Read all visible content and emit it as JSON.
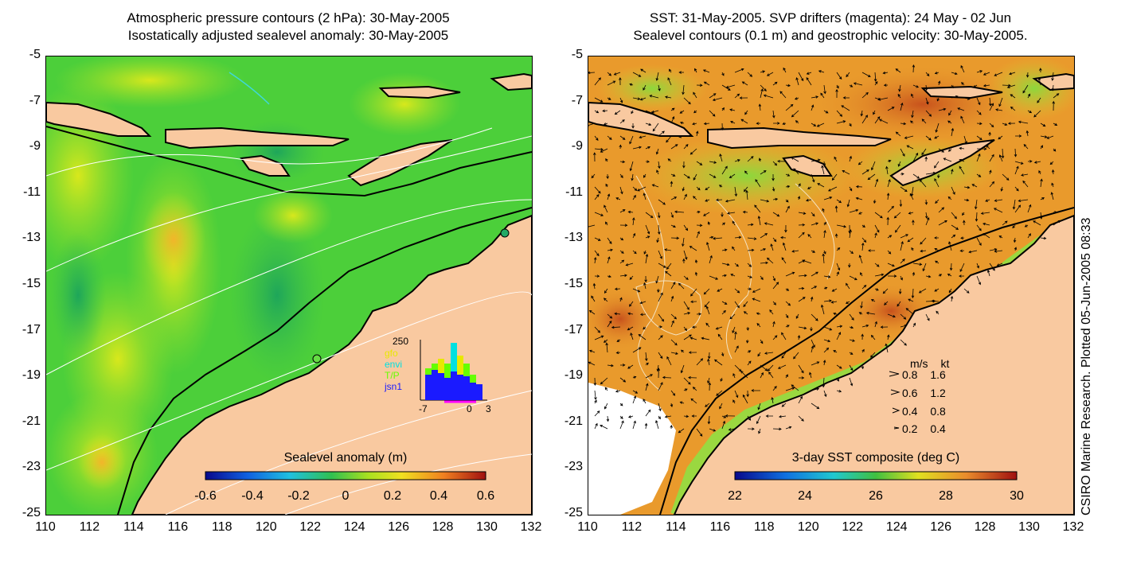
{
  "left_panel": {
    "title_line1": "Atmospheric pressure contours (2 hPa): 30-May-2005",
    "title_line2": "Isostatically adjusted sealevel anomaly: 30-May-2005",
    "colorbar": {
      "title": "Sealevel anomaly (m)",
      "ticks": [
        "-0.6",
        "-0.4",
        "-0.2",
        "0",
        "0.2",
        "0.4",
        "0.6"
      ],
      "range": [
        -0.6,
        0.6
      ]
    },
    "inset": {
      "ymax_label": "250",
      "satellites": [
        {
          "name": "gfo",
          "color": "#e8e800"
        },
        {
          "name": "envi",
          "color": "#00e0e0"
        },
        {
          "name": "T/P",
          "color": "#66ff00"
        },
        {
          "name": "jsn1",
          "color": "#1a1aff"
        }
      ],
      "x_ticks": [
        "-7",
        "0",
        "3"
      ]
    }
  },
  "right_panel": {
    "title_line1": "SST: 31-May-2005. SVP drifters (magenta): 24 May - 02 Jun",
    "title_line2": "Sealevel contours (0.1 m) and geostrophic velocity: 30-May-2005.",
    "colorbar": {
      "title": "3-day SST composite (deg C)",
      "ticks": [
        "22",
        "24",
        "26",
        "28",
        "30"
      ],
      "range": [
        22,
        30
      ]
    },
    "velocity_legend": {
      "header_ms": "m/s",
      "header_kt": "kt",
      "rows": [
        {
          "ms": "0.8",
          "kt": "1.6"
        },
        {
          "ms": "0.6",
          "kt": "1.2"
        },
        {
          "ms": "0.4",
          "kt": "0.8"
        },
        {
          "ms": "0.2",
          "kt": "0.4"
        }
      ]
    },
    "credit": "CSIRO Marine Research. Plotted 05-Jun-2005 08:33"
  },
  "axes": {
    "lat_ticks": [
      "-5",
      "-7",
      "-9",
      "-11",
      "-13",
      "-15",
      "-17",
      "-19",
      "-21",
      "-23",
      "-25"
    ],
    "lon_ticks": [
      "110",
      "112",
      "114",
      "116",
      "118",
      "120",
      "122",
      "124",
      "126",
      "128",
      "130",
      "132"
    ]
  },
  "colors": {
    "land": "#f9c9a0",
    "coast": "#000000",
    "sla_base": "#4ccf3a",
    "sst_base": "#e99a2c"
  }
}
